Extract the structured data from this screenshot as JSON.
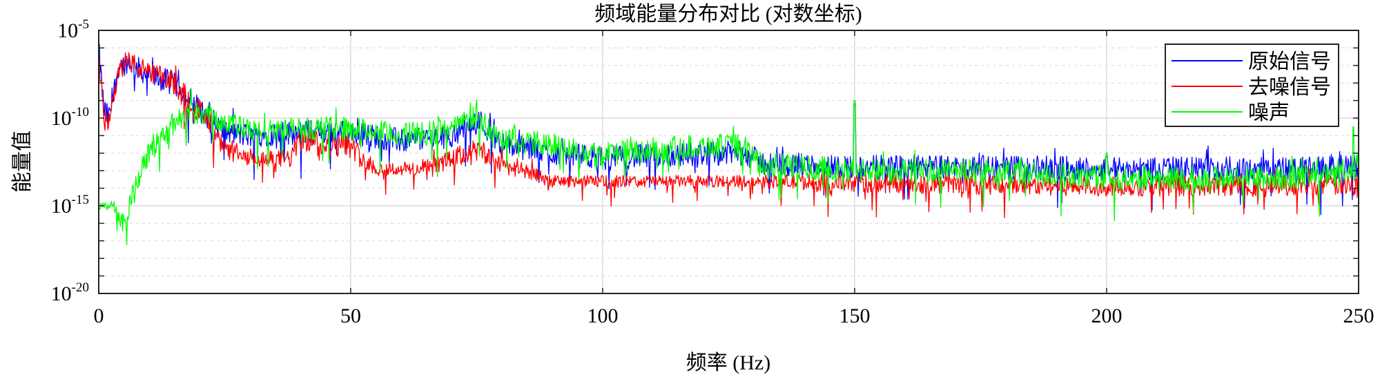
{
  "chart_data": {
    "type": "line",
    "title": "频域能量分布对比 (对数坐标)",
    "xlabel": "频率 (Hz)",
    "ylabel": "能量值",
    "xlim": [
      0,
      250
    ],
    "ylim_log10": [
      -20,
      -5
    ],
    "yscale": "log",
    "grid": true,
    "legend_position": "top-right",
    "xticks": [
      "0",
      "50",
      "100",
      "150",
      "200",
      "250"
    ],
    "xtick_values": [
      0,
      50,
      100,
      150,
      200,
      250
    ],
    "yticks": [
      {
        "base": "10",
        "exp": "-5",
        "value": -5
      },
      {
        "base": "10",
        "exp": "-10",
        "value": -10
      },
      {
        "base": "10",
        "exp": "-15",
        "value": -15
      },
      {
        "base": "10",
        "exp": "-20",
        "value": -20
      }
    ],
    "series_note": "envelope points: [frequency Hz, center log10 energy, noise spread in decades]",
    "series": [
      {
        "name": "原始信号",
        "color": "#0000ff",
        "envelope": [
          [
            0,
            -6,
            1
          ],
          [
            1,
            -9.5,
            1
          ],
          [
            2,
            -10,
            1
          ],
          [
            4,
            -7,
            0.8
          ],
          [
            6,
            -6.8,
            0.9
          ],
          [
            10,
            -7.6,
            1
          ],
          [
            15,
            -8,
            1
          ],
          [
            20,
            -9.5,
            1
          ],
          [
            25,
            -10.8,
            1
          ],
          [
            30,
            -11,
            1
          ],
          [
            40,
            -10.8,
            1
          ],
          [
            50,
            -10.8,
            1
          ],
          [
            60,
            -11.3,
            1
          ],
          [
            70,
            -11,
            1
          ],
          [
            75,
            -10,
            1
          ],
          [
            80,
            -11.5,
            1
          ],
          [
            90,
            -12,
            1
          ],
          [
            100,
            -12.3,
            1
          ],
          [
            120,
            -12,
            1
          ],
          [
            128,
            -12,
            1
          ],
          [
            132,
            -12.6,
            1
          ],
          [
            150,
            -12.8,
            1
          ],
          [
            170,
            -12.8,
            1
          ],
          [
            200,
            -12.9,
            1
          ],
          [
            240,
            -12.9,
            1
          ],
          [
            250,
            -12.8,
            1
          ]
        ],
        "spikes": [
          [
            150,
            -9.2
          ],
          [
            200,
            -12.2
          ],
          [
            249,
            -12.6
          ]
        ]
      },
      {
        "name": "去噪信号",
        "color": "#ff0000",
        "envelope": [
          [
            0,
            -6,
            1
          ],
          [
            1,
            -10,
            1
          ],
          [
            2,
            -10.5,
            1
          ],
          [
            4,
            -7,
            0.8
          ],
          [
            5,
            -6.6,
            0.8
          ],
          [
            10,
            -7.5,
            1
          ],
          [
            15,
            -8,
            1
          ],
          [
            20,
            -9.6,
            1
          ],
          [
            25,
            -11.8,
            0.8
          ],
          [
            30,
            -12.4,
            0.6
          ],
          [
            38,
            -12.3,
            0.8
          ],
          [
            40,
            -11.2,
            1
          ],
          [
            50,
            -11.6,
            1
          ],
          [
            55,
            -12.9,
            0.6
          ],
          [
            65,
            -12.9,
            0.6
          ],
          [
            75,
            -11.8,
            1
          ],
          [
            80,
            -12.6,
            0.8
          ],
          [
            90,
            -13.6,
            0.5
          ],
          [
            130,
            -13.6,
            0.5
          ],
          [
            150,
            -13.7,
            0.8
          ],
          [
            200,
            -13.9,
            0.8
          ],
          [
            250,
            -13.8,
            0.9
          ]
        ],
        "spikes": []
      },
      {
        "name": "噪声",
        "color": "#00ff00",
        "envelope": [
          [
            0,
            -15,
            0.3
          ],
          [
            3,
            -15,
            0.4
          ],
          [
            5,
            -16,
            1
          ],
          [
            7,
            -14,
            0.8
          ],
          [
            10,
            -12,
            1
          ],
          [
            14,
            -10.5,
            1
          ],
          [
            18,
            -9.6,
            1
          ],
          [
            22,
            -9.8,
            1
          ],
          [
            30,
            -10.8,
            1
          ],
          [
            40,
            -10.6,
            1
          ],
          [
            50,
            -10.6,
            1
          ],
          [
            60,
            -11,
            1
          ],
          [
            70,
            -10.6,
            1
          ],
          [
            75,
            -9.8,
            1
          ],
          [
            78,
            -11,
            1
          ],
          [
            90,
            -11.6,
            1
          ],
          [
            100,
            -12,
            1
          ],
          [
            120,
            -11.6,
            1
          ],
          [
            128,
            -11.6,
            1
          ],
          [
            131,
            -12.6,
            1
          ],
          [
            150,
            -13,
            1
          ],
          [
            170,
            -13,
            1
          ],
          [
            200,
            -13.4,
            1
          ],
          [
            240,
            -13.4,
            1
          ],
          [
            250,
            -13.2,
            1
          ]
        ],
        "spikes": [
          [
            150,
            -9.0
          ],
          [
            200,
            -12.0
          ],
          [
            183,
            -12.3
          ],
          [
            249,
            -10.5
          ],
          [
            250,
            -12.0
          ]
        ]
      }
    ]
  }
}
